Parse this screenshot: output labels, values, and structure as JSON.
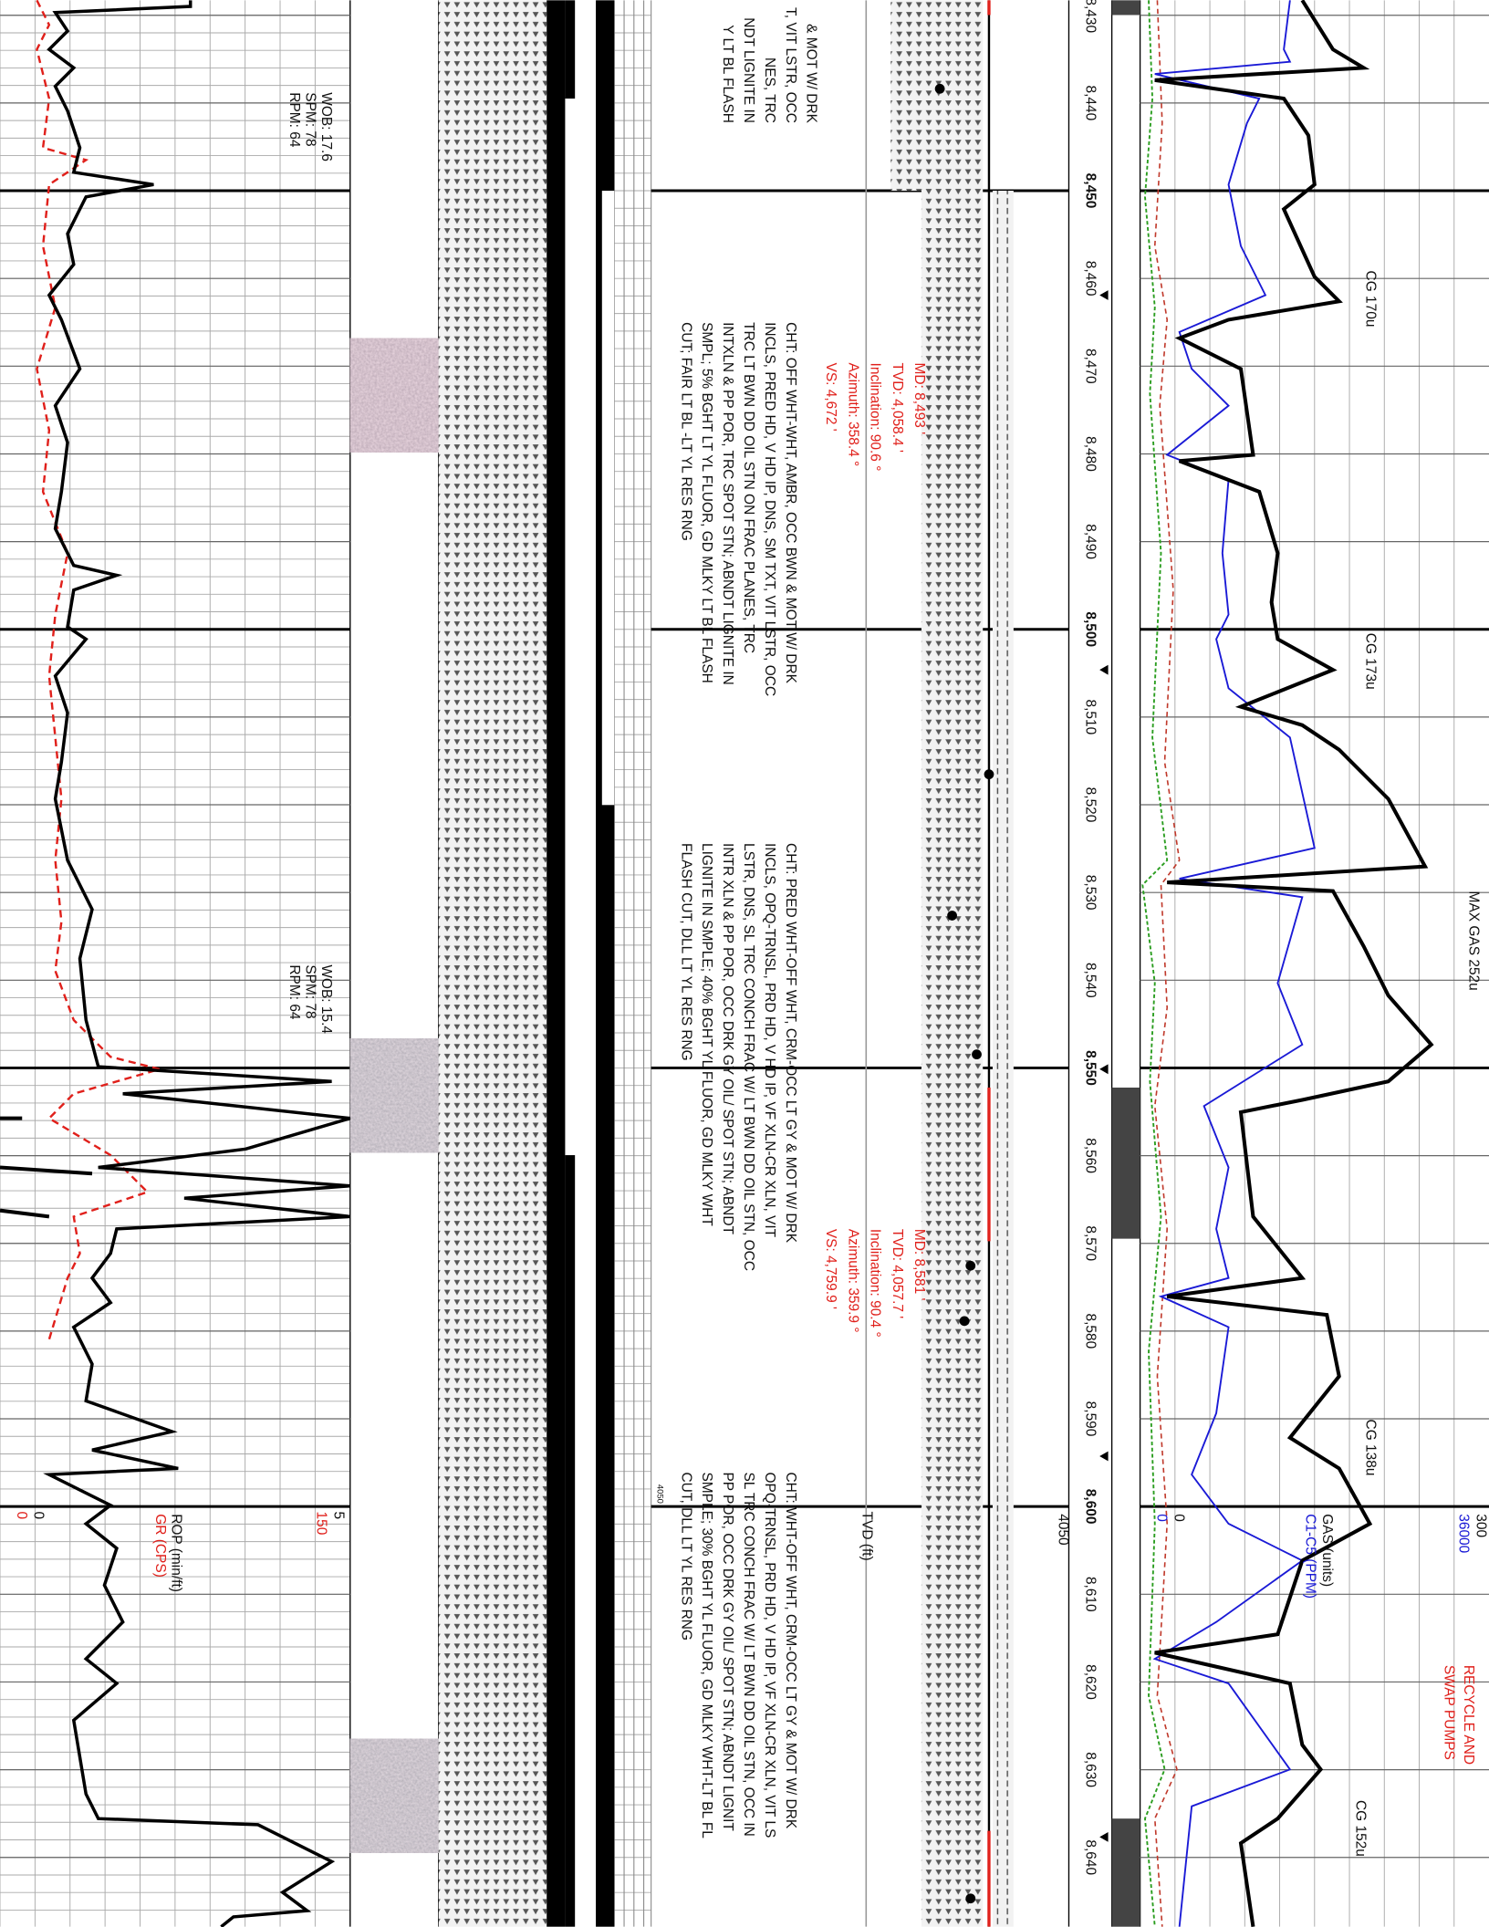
{
  "depth_track": {
    "labels": [
      "8,430",
      "8,440",
      "8,450",
      "8,460",
      "8,470",
      "8,480",
      "8,490",
      "8,500",
      "8,510",
      "8,520",
      "8,530",
      "8,540",
      "8,550",
      "8,560",
      "8,570",
      "8,580",
      "8,590",
      "8,600",
      "8,610",
      "8,620",
      "8,630",
      "8,640"
    ]
  },
  "rop_track": {
    "header": {
      "rop_label": "ROP (min/ft)",
      "gr_label": "GR (CPS)",
      "rop_max": "5",
      "gr_max": "150",
      "rop_min": "0",
      "gr_min": "0"
    },
    "drilling_params": [
      {
        "wob": "WOB: 17.6",
        "spm": "SPM: 78",
        "rpm": "RPM: 64"
      },
      {
        "wob": "WOB: 15.4",
        "spm": "SPM: 78",
        "rpm": "RPM: 64"
      }
    ]
  },
  "descriptions": [
    [
      "& MOT W/ DRK",
      "T, VIT LSTR, OCC",
      "NES, TRC",
      "NDT LIGNITE IN",
      "Y LT BL FLASH"
    ],
    [
      "CHT: OFF WHT-WHT, AMBR, OCC BWN & MOT W/ DRK",
      "INCLS, PRED HD, V HD IP, DNS, SM TXT, VIT LSTR, OCC",
      "TRC LT BWN DD OIL STN ON FRAC PLANES, TRC",
      "INTXLN & PP POR, TRC SPOT STN; ABNDT LIGNITE IN",
      "SMPL; 5% BGHT LT YL FLUOR, GD MLKY LT BL FLASH",
      "CUT; FAIR LT BL -LT YL RES RNG"
    ],
    [
      "CHT: PRED WHT-OFF WHT, CRM-OCC LT GY & MOT W/ DRK",
      "INCLS, OPQ-TRNSL, PRD HD, V HD IP, VF XLN-CR XLN, VIT",
      "LSTR, DNS, SL TRC CONCH FRAC W/ LT BWN DD OIL STN, OCC",
      "INTR XLN & PP POR, OCC DRK GY OIL/ SPOT STN; ABNDT",
      "LIGNITE IN SMPLE; 40% BGHT YL FLUOR, GD MLKY WHT",
      "FLASH CUT, DLL LT YL RES RNG"
    ],
    [
      "CHT: WHT-OFF WHT, CRM-OCC LT GY & MOT W/ DRK",
      "OPQ-TRNSL, PRD HD, V HD IP, VF XLN-CR XLN, VIT LS",
      "SL TRC CONCH FRAC W/ LT BWN DD OIL STN, OCC IN",
      "PP POR, OCC DRK GY OIL/ SPOT STN; ABNDT LIGNIT",
      "SMPLE; 30% BGHT YL FLUOR, GD MLKY WHT-LT BL FL",
      "CUT, DLL LT YL RES RNG"
    ]
  ],
  "surveys": [
    [
      "MD: 8,493 '",
      "TVD: 4,058.4 '",
      "Inclination: 90.6 °",
      "Azimuth: 358.4 °",
      "VS: 4,672 '"
    ],
    [
      "MD: 8,581 '",
      "TVD: 4,057.7 '",
      "Inclination: 90.4 °",
      "Azimuth: 359.9 °",
      "VS: 4,759.9 '"
    ]
  ],
  "tvd_track": {
    "label": "TVD (ft)",
    "scale": "4050",
    "marker": "4050"
  },
  "gas_track": {
    "gas_label": "GAS (units)",
    "c1c5_label": "C1-C5 (PPM)",
    "gas_max": "300",
    "c1c5_max": "36000",
    "gas_min": "0",
    "c1c5_min": "0",
    "annotations": [
      "CG 170u",
      "CG 173u",
      "MAX GAS 252u",
      "CG 138u",
      "CG 152u"
    ],
    "remark": [
      "RECYCLE AND",
      "SWAP PUMPS"
    ]
  }
}
